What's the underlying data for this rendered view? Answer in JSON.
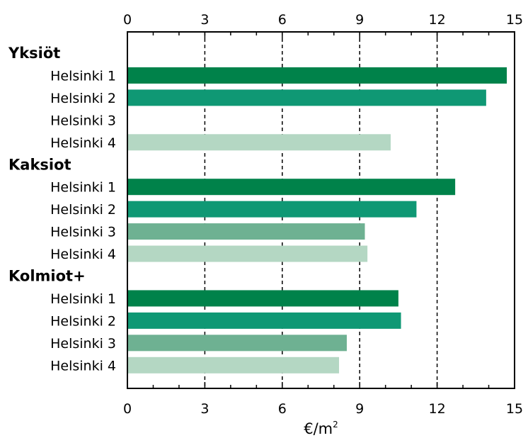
{
  "chart_data": {
    "type": "bar",
    "orientation": "horizontal",
    "xlabel": "€/m",
    "xlabel_superscript": "2",
    "xlim": [
      0,
      15
    ],
    "xticks": [
      "0",
      "3",
      "6",
      "9",
      "12",
      "15"
    ],
    "grid": "vertical dashed lines at 3, 6, 9, 12",
    "tick_labels_position": "top and bottom",
    "groups": [
      {
        "label": "Yksiöt",
        "categories": [
          "Helsinki 1",
          "Helsinki 2",
          "Helsinki 3",
          "Helsinki 4"
        ],
        "values": [
          14.7,
          13.9,
          null,
          10.2
        ]
      },
      {
        "label": "Kaksiot",
        "categories": [
          "Helsinki 1",
          "Helsinki 2",
          "Helsinki 3",
          "Helsinki 4"
        ],
        "values": [
          12.7,
          11.2,
          9.2,
          9.3
        ]
      },
      {
        "label": "Kolmiot+",
        "categories": [
          "Helsinki 1",
          "Helsinki 2",
          "Helsinki 3",
          "Helsinki 4"
        ],
        "values": [
          10.5,
          10.6,
          8.5,
          8.2
        ]
      }
    ],
    "colors": {
      "Helsinki 1": "#00824a",
      "Helsinki 2": "#0f9874",
      "Helsinki 3": "#6eb192",
      "Helsinki 4": "#b4d7c3"
    }
  }
}
